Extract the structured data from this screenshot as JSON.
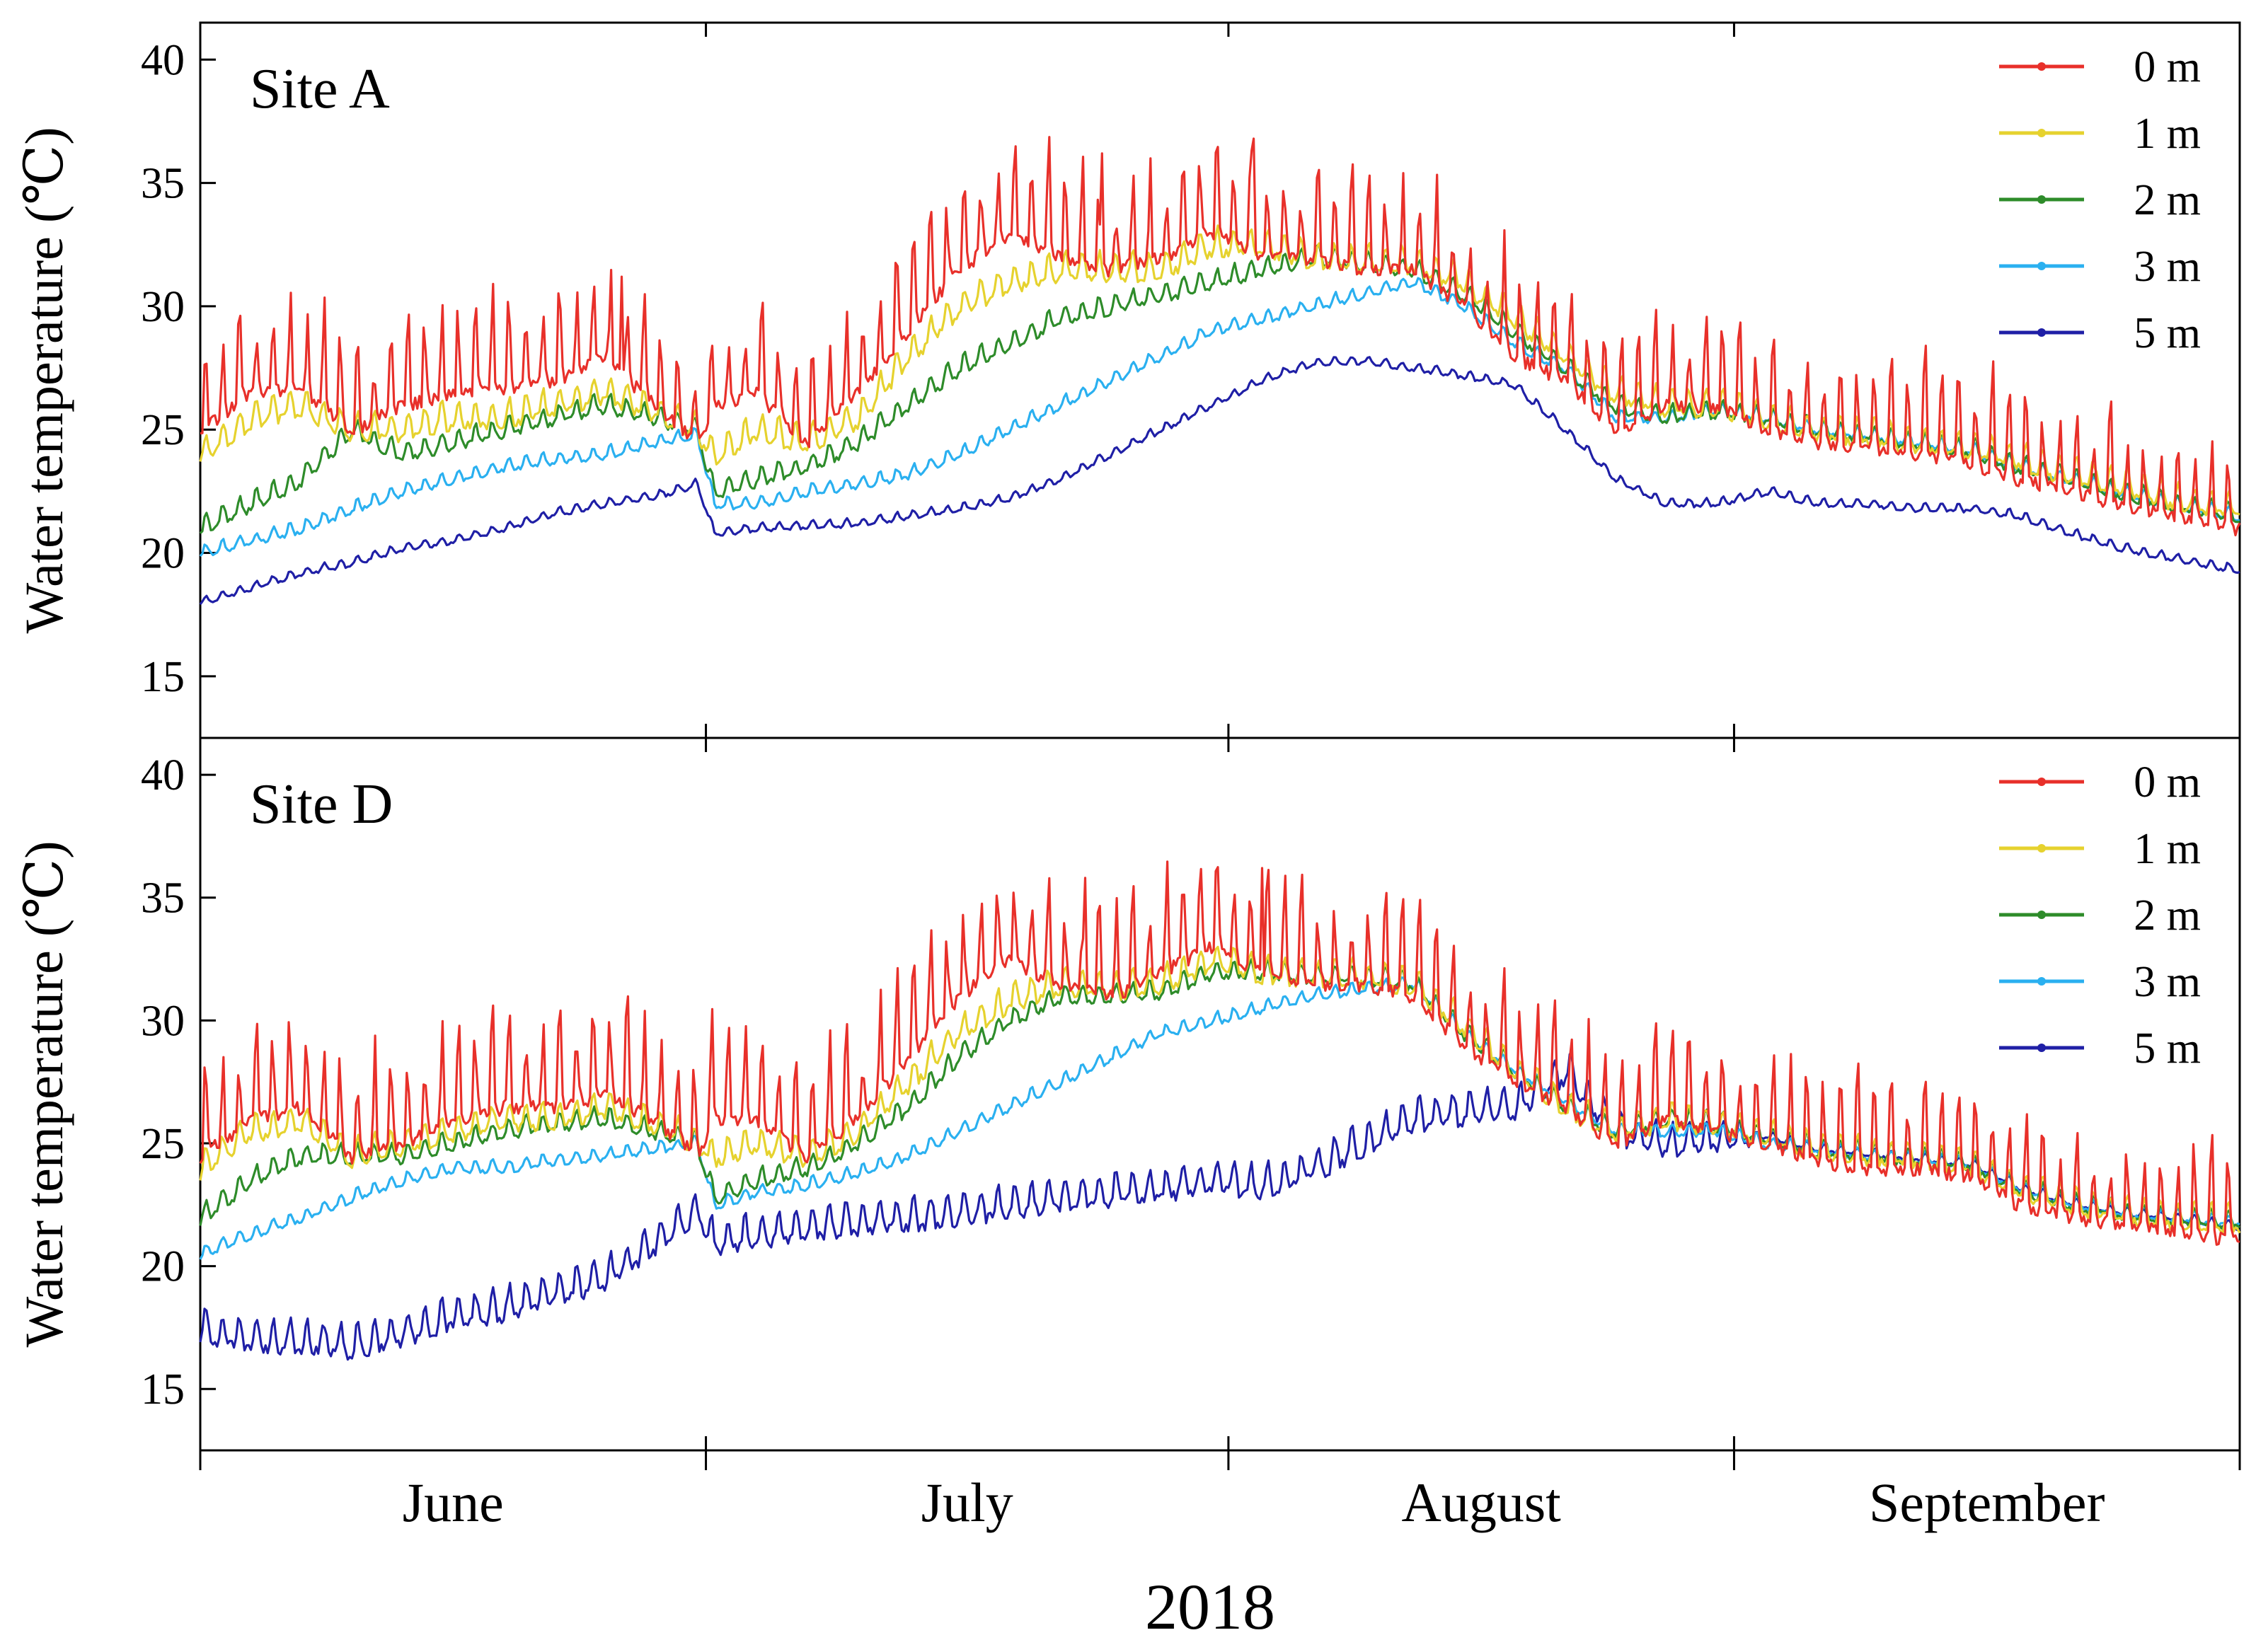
{
  "figure": {
    "year_label": "2018"
  },
  "chart_data": [
    {
      "type": "line",
      "title": "Site A",
      "xlabel": "2018",
      "ylabel": "Water temperature (℃)",
      "ylim": [
        12.5,
        41.5
      ],
      "yticks": [
        15,
        20,
        25,
        30,
        35,
        40
      ],
      "ytick_labels": [
        "15",
        "20",
        "25",
        "30",
        "35",
        "40"
      ],
      "x_unit": "days since June 1, 2018",
      "xlim": [
        0,
        121
      ],
      "months": [
        {
          "label": "June",
          "start": 0,
          "end": 30
        },
        {
          "label": "July",
          "start": 30,
          "end": 61
        },
        {
          "label": "August",
          "start": 61,
          "end": 91
        },
        {
          "label": "September",
          "start": 91,
          "end": 121
        }
      ],
      "legend_position": "top-right",
      "series": [
        {
          "name": "0 m",
          "color": "#e8302a",
          "x": [
            0,
            3,
            6,
            9,
            12,
            15,
            18,
            21,
            24,
            27,
            29.5,
            30.5,
            33,
            36,
            39,
            42,
            45,
            48,
            51,
            54,
            57,
            60,
            63,
            66,
            69,
            72,
            75,
            78,
            81,
            84,
            87,
            90,
            93,
            96,
            99,
            102,
            105,
            108,
            111,
            114,
            117,
            121
          ],
          "values": [
            25.5,
            27.0,
            27.2,
            25.5,
            26.5,
            27.0,
            27.2,
            27.5,
            28.5,
            26.5,
            25.0,
            26.5,
            27.0,
            25.0,
            27.0,
            29.5,
            32.0,
            33.5,
            32.5,
            32.0,
            32.5,
            33.5,
            32.5,
            32.5,
            32.0,
            32.0,
            30.5,
            28.5,
            27.5,
            25.5,
            26.5,
            26.5,
            25.5,
            25.0,
            24.8,
            24.5,
            24.2,
            23.5,
            23.0,
            22.5,
            22.0,
            21.5
          ],
          "peaks": [
            {
              "x": 62.5,
              "y": 36.8
            },
            {
              "x": 53.5,
              "y": 36.2
            },
            {
              "x": 25,
              "y": 31.2
            }
          ]
        },
        {
          "name": "1 m",
          "color": "#e6d22e",
          "x": [
            0,
            3,
            6,
            9,
            12,
            15,
            18,
            21,
            24,
            27,
            29.5,
            30.5,
            33,
            36,
            39,
            42,
            45,
            48,
            51,
            54,
            57,
            60,
            63,
            66,
            69,
            72,
            75,
            78,
            81,
            84,
            87,
            90,
            93,
            96,
            99,
            102,
            105,
            108,
            111,
            114,
            117,
            121
          ],
          "values": [
            24.0,
            25.5,
            26.0,
            25.0,
            25.0,
            25.5,
            25.5,
            26.0,
            26.5,
            25.8,
            25.0,
            24.0,
            25.0,
            24.5,
            25.5,
            28.0,
            30.0,
            31.0,
            31.5,
            31.5,
            31.5,
            32.5,
            32.5,
            32.0,
            31.8,
            31.8,
            31.0,
            29.5,
            28.0,
            26.5,
            26.0,
            26.0,
            25.5,
            25.0,
            24.8,
            24.5,
            24.3,
            23.8,
            23.2,
            22.8,
            22.2,
            21.8
          ]
        },
        {
          "name": "2 m",
          "color": "#2e8c2a",
          "x": [
            0,
            3,
            6,
            9,
            12,
            15,
            18,
            21,
            24,
            27,
            29.5,
            30.5,
            33,
            36,
            39,
            42,
            45,
            48,
            51,
            54,
            57,
            60,
            63,
            66,
            69,
            72,
            75,
            78,
            81,
            84,
            87,
            90,
            93,
            96,
            99,
            102,
            105,
            108,
            111,
            114,
            117,
            121
          ],
          "values": [
            21.0,
            22.0,
            23.0,
            25.0,
            24.0,
            24.5,
            25.0,
            25.5,
            26.0,
            25.5,
            25.0,
            22.5,
            23.0,
            23.5,
            24.5,
            26.0,
            27.5,
            28.5,
            29.5,
            30.0,
            30.5,
            31.0,
            31.5,
            32.0,
            31.8,
            31.5,
            30.5,
            29.0,
            27.5,
            26.0,
            25.5,
            25.8,
            25.5,
            25.0,
            24.8,
            24.5,
            24.2,
            23.5,
            23.0,
            22.5,
            22.0,
            21.6
          ]
        },
        {
          "name": "3 m",
          "color": "#2ab0f0",
          "x": [
            0,
            3,
            6,
            9,
            12,
            15,
            18,
            21,
            24,
            27,
            29.5,
            30.5,
            33,
            36,
            39,
            42,
            45,
            48,
            51,
            54,
            57,
            60,
            63,
            66,
            69,
            72,
            75,
            78,
            81,
            84,
            87,
            90,
            93,
            96,
            99,
            102,
            105,
            108,
            111,
            114,
            117,
            121
          ],
          "values": [
            20.0,
            20.5,
            21.0,
            21.8,
            22.5,
            23.0,
            23.5,
            23.8,
            24.0,
            24.5,
            24.8,
            22.0,
            22.0,
            22.5,
            22.8,
            23.2,
            24.0,
            25.0,
            26.0,
            27.0,
            28.0,
            29.0,
            29.5,
            30.0,
            30.5,
            31.0,
            30.0,
            28.5,
            27.5,
            25.5,
            25.5,
            25.8,
            25.5,
            25.0,
            24.8,
            24.5,
            24.2,
            23.5,
            23.0,
            22.5,
            22.0,
            21.5
          ]
        },
        {
          "name": "5 m",
          "color": "#1f1fa6",
          "x": [
            0,
            3,
            6,
            9,
            12,
            15,
            18,
            21,
            24,
            27,
            29.5,
            30.5,
            33,
            36,
            39,
            42,
            45,
            48,
            51,
            54,
            57,
            60,
            63,
            66,
            69,
            72,
            75,
            78,
            81,
            84,
            87,
            90,
            93,
            96,
            99,
            102,
            105,
            108,
            111,
            114,
            117,
            121
          ],
          "values": [
            18.0,
            18.6,
            19.2,
            19.6,
            20.2,
            20.5,
            21.0,
            21.6,
            22.0,
            22.3,
            22.8,
            20.8,
            21.0,
            21.1,
            21.2,
            21.5,
            21.8,
            22.2,
            23.0,
            24.0,
            25.0,
            26.0,
            27.0,
            27.7,
            27.8,
            27.5,
            27.2,
            26.8,
            25.0,
            23.0,
            22.0,
            22.0,
            22.5,
            22.0,
            22.0,
            21.8,
            21.8,
            21.5,
            20.8,
            20.2,
            19.8,
            19.3
          ]
        }
      ]
    },
    {
      "type": "line",
      "title": "Site D",
      "xlabel": "2018",
      "ylabel": "Water temperature (℃)",
      "ylim": [
        12.5,
        41.5
      ],
      "yticks": [
        15,
        20,
        25,
        30,
        35,
        40
      ],
      "ytick_labels": [
        "15",
        "20",
        "25",
        "30",
        "35",
        "40"
      ],
      "x_unit": "days since June 1, 2018",
      "xlim": [
        0,
        121
      ],
      "months": [
        {
          "label": "June",
          "start": 0,
          "end": 30
        },
        {
          "label": "July",
          "start": 30,
          "end": 61
        },
        {
          "label": "August",
          "start": 61,
          "end": 91
        },
        {
          "label": "September",
          "start": 91,
          "end": 121
        }
      ],
      "legend_position": "top-right",
      "series": [
        {
          "name": "0 m",
          "color": "#e8302a",
          "x": [
            0,
            3,
            6,
            9,
            12,
            15,
            18,
            21,
            24,
            27,
            29.5,
            30.5,
            33,
            36,
            39,
            42,
            45,
            48,
            51,
            54,
            57,
            60,
            63,
            66,
            69,
            72,
            75,
            78,
            81,
            84,
            87,
            90,
            93,
            96,
            99,
            102,
            105,
            108,
            111,
            114,
            117,
            121
          ],
          "values": [
            25.0,
            26.5,
            27.0,
            25.0,
            25.5,
            26.5,
            27.0,
            27.0,
            27.5,
            26.5,
            25.0,
            26.5,
            26.5,
            25.0,
            26.5,
            29.0,
            31.5,
            33.0,
            32.0,
            31.5,
            32.5,
            33.5,
            32.5,
            32.0,
            32.0,
            31.5,
            29.5,
            28.0,
            27.0,
            25.5,
            26.5,
            26.0,
            25.5,
            24.8,
            24.5,
            24.5,
            24.2,
            23.0,
            22.5,
            22.2,
            22.0,
            21.5
          ],
          "peaks": [
            {
              "x": 63,
              "y": 36.2
            },
            {
              "x": 52.5,
              "y": 35.8
            }
          ]
        },
        {
          "name": "1 m",
          "color": "#e6d22e",
          "x": [
            0,
            3,
            6,
            9,
            12,
            15,
            18,
            21,
            24,
            27,
            29.5,
            30.5,
            33,
            36,
            39,
            42,
            45,
            48,
            51,
            54,
            57,
            60,
            63,
            66,
            69,
            72,
            75,
            78,
            81,
            84,
            87,
            90,
            93,
            96,
            99,
            102,
            105,
            108,
            111,
            114,
            117,
            121
          ],
          "values": [
            24.0,
            25.5,
            26.0,
            24.5,
            25.0,
            25.5,
            26.0,
            26.0,
            26.5,
            25.8,
            25.0,
            24.5,
            25.0,
            24.5,
            25.5,
            27.5,
            29.5,
            30.8,
            31.5,
            31.3,
            31.5,
            32.5,
            32.0,
            31.8,
            31.8,
            31.5,
            29.8,
            28.0,
            26.5,
            25.5,
            26.0,
            25.8,
            25.3,
            24.8,
            24.6,
            24.4,
            24.2,
            23.2,
            22.6,
            22.2,
            22.0,
            21.8
          ]
        },
        {
          "name": "2 m",
          "color": "#2e8c2a",
          "x": [
            0,
            3,
            6,
            9,
            12,
            15,
            18,
            21,
            24,
            27,
            29.5,
            30.5,
            33,
            36,
            39,
            42,
            45,
            48,
            51,
            54,
            57,
            60,
            63,
            66,
            69,
            72,
            75,
            78,
            81,
            84,
            87,
            90,
            93,
            96,
            99,
            102,
            105,
            108,
            111,
            114,
            117,
            121
          ],
          "values": [
            22.0,
            23.5,
            24.5,
            24.5,
            24.5,
            25.0,
            25.5,
            25.8,
            26.0,
            25.5,
            25.0,
            22.8,
            23.5,
            24.0,
            25.0,
            26.5,
            28.5,
            30.0,
            31.0,
            31.0,
            31.2,
            32.0,
            32.0,
            31.8,
            31.8,
            31.5,
            29.5,
            28.0,
            26.5,
            25.5,
            26.0,
            25.8,
            25.3,
            24.8,
            24.6,
            24.4,
            24.2,
            23.2,
            22.6,
            22.2,
            22.0,
            21.8
          ]
        },
        {
          "name": "3 m",
          "color": "#2ab0f0",
          "x": [
            0,
            3,
            6,
            9,
            12,
            15,
            18,
            21,
            24,
            27,
            29.5,
            30.5,
            33,
            36,
            39,
            42,
            45,
            48,
            51,
            54,
            57,
            60,
            63,
            66,
            69,
            72,
            75,
            78,
            81,
            84,
            87,
            90,
            93,
            96,
            99,
            102,
            105,
            108,
            111,
            114,
            117,
            121
          ],
          "values": [
            20.5,
            21.3,
            22.0,
            22.8,
            23.5,
            24.0,
            24.0,
            24.3,
            24.5,
            24.8,
            25.0,
            22.5,
            23.0,
            23.3,
            23.8,
            24.5,
            25.5,
            26.5,
            27.5,
            28.5,
            29.5,
            30.0,
            30.5,
            31.0,
            31.3,
            31.5,
            29.5,
            28.0,
            26.8,
            25.5,
            25.5,
            25.5,
            25.0,
            24.8,
            24.5,
            24.4,
            24.2,
            23.2,
            22.6,
            22.2,
            22.0,
            21.8
          ]
        },
        {
          "name": "5 m",
          "color": "#1f1fa6",
          "x": [
            0,
            3,
            6,
            9,
            12,
            15,
            18,
            21,
            24,
            27,
            29.5,
            30.5,
            33,
            36,
            39,
            42,
            45,
            48,
            51,
            54,
            57,
            60,
            63,
            66,
            69,
            72,
            75,
            78,
            81,
            84,
            87,
            90,
            93,
            96,
            99,
            102,
            105,
            108,
            111,
            114,
            117,
            121
          ],
          "values": [
            17.5,
            17.0,
            17.0,
            16.8,
            17.3,
            18.0,
            18.3,
            19.0,
            19.5,
            21.0,
            22.3,
            21.0,
            21.3,
            21.6,
            21.8,
            22.0,
            22.2,
            22.5,
            22.8,
            23.0,
            23.2,
            23.5,
            23.3,
            24.0,
            25.0,
            26.0,
            26.3,
            26.5,
            28.0,
            25.5,
            25.0,
            25.2,
            25.3,
            24.8,
            24.6,
            24.4,
            24.2,
            23.2,
            22.6,
            22.2,
            22.0,
            21.6
          ]
        }
      ]
    }
  ]
}
